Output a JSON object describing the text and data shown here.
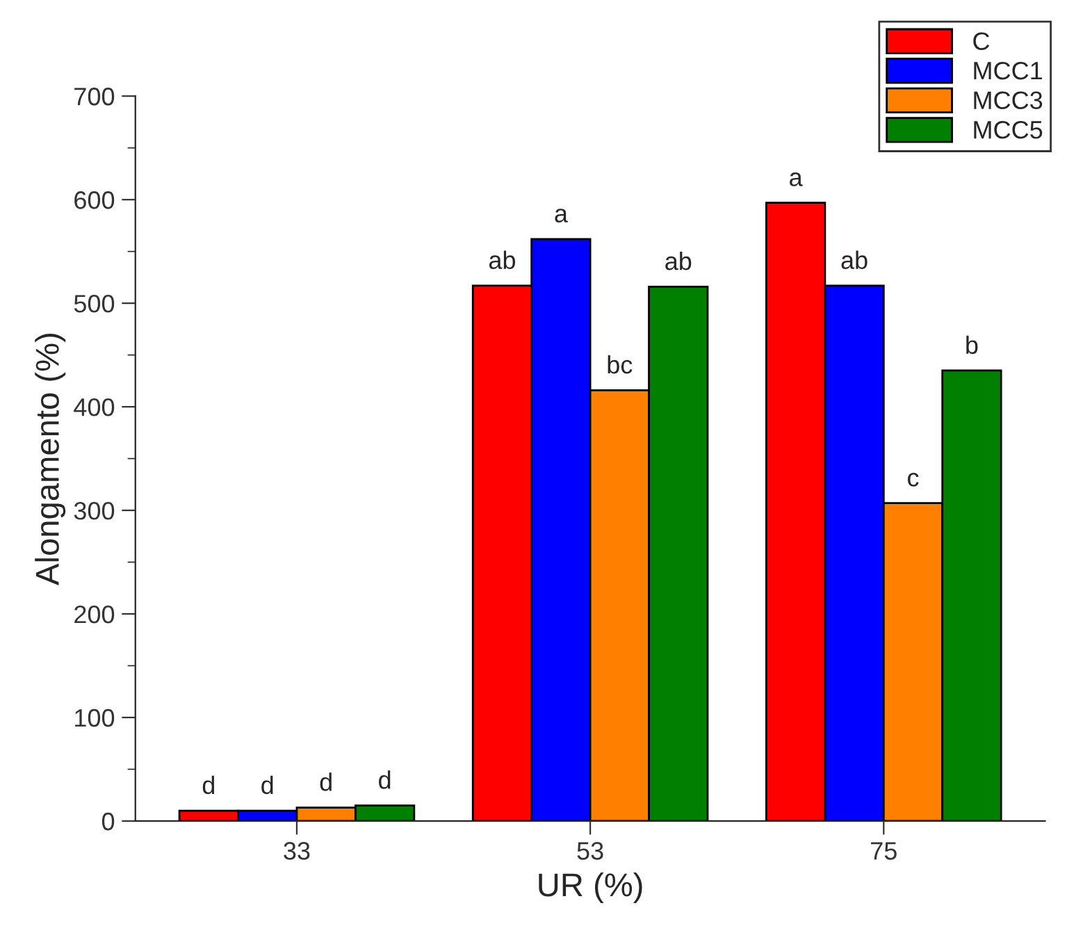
{
  "chart_data": {
    "type": "bar",
    "xlabel": "UR (%)",
    "ylabel": "Alongamento (%)",
    "categories": [
      "33",
      "53",
      "75"
    ],
    "series": [
      {
        "name": "C",
        "color": "#ff0000",
        "values": [
          10,
          517,
          597
        ],
        "value_labels": [
          "d",
          "ab",
          "a"
        ]
      },
      {
        "name": "MCC1",
        "color": "#0000ff",
        "values": [
          10,
          562,
          517
        ],
        "value_labels": [
          "d",
          "a",
          "ab"
        ]
      },
      {
        "name": "MCC3",
        "color": "#ff8000",
        "values": [
          13,
          416,
          307
        ],
        "value_labels": [
          "d",
          "bc",
          "c"
        ]
      },
      {
        "name": "MCC5",
        "color": "#007f00",
        "values": [
          15,
          516,
          435
        ],
        "value_labels": [
          "d",
          "ab",
          "b"
        ]
      }
    ],
    "ylim": [
      0,
      700
    ],
    "yticks": [
      0,
      100,
      200,
      300,
      400,
      500,
      600,
      700
    ],
    "grid": false,
    "legend": "top right"
  }
}
